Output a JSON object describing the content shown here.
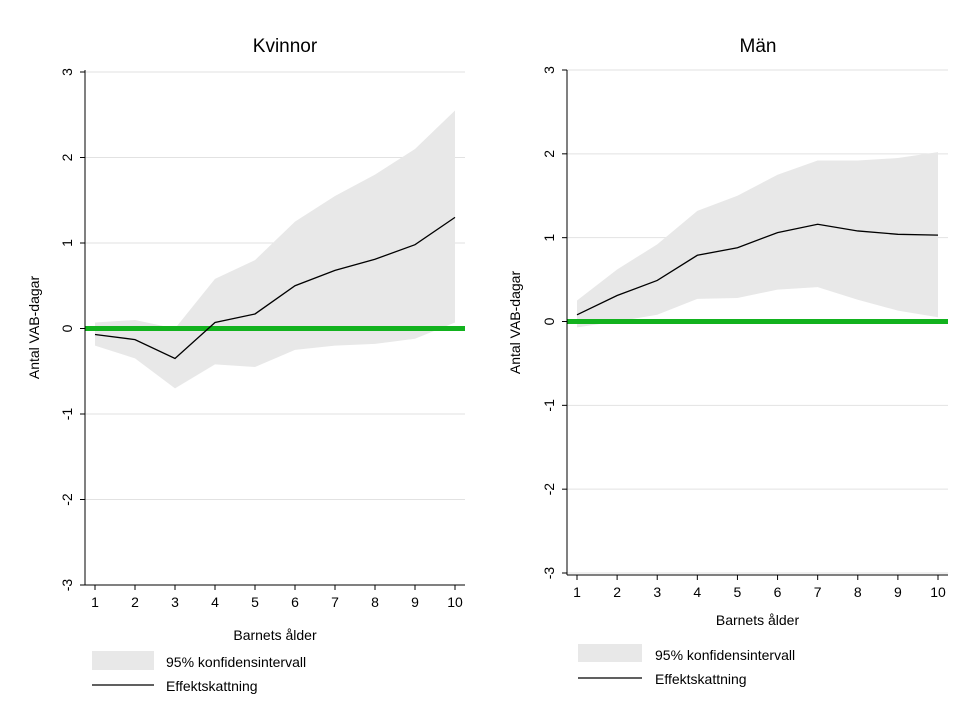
{
  "chart_data": [
    {
      "type": "line",
      "title": "Kvinnor",
      "xlabel": "Barnets ålder",
      "ylabel": "Antal VAB-dagar",
      "x": [
        1,
        2,
        3,
        4,
        5,
        6,
        7,
        8,
        9,
        10
      ],
      "xlim": [
        1,
        10
      ],
      "ylim": [
        -3,
        3
      ],
      "yticks": [
        -3,
        -2,
        -1,
        0,
        1,
        2,
        3
      ],
      "ytick_labels": [
        "-3",
        "-2",
        "-1",
        "0",
        "1",
        "2",
        "3"
      ],
      "xtick_labels": [
        "1",
        "2",
        "3",
        "4",
        "5",
        "6",
        "7",
        "8",
        "9",
        "10"
      ],
      "grid": true,
      "reference_line": {
        "y": 0,
        "color": "#12b21e"
      },
      "series": [
        {
          "name": "Effektskattning",
          "values": [
            -0.07,
            -0.13,
            -0.35,
            0.07,
            0.17,
            0.5,
            0.68,
            0.81,
            0.98,
            1.3
          ],
          "color": "#000000"
        }
      ],
      "band": {
        "name": "95% konfidensintervall",
        "lower": [
          -0.2,
          -0.35,
          -0.7,
          -0.42,
          -0.45,
          -0.25,
          -0.2,
          -0.18,
          -0.12,
          0.07
        ],
        "upper": [
          0.07,
          0.1,
          0.0,
          0.58,
          0.8,
          1.25,
          1.55,
          1.8,
          2.1,
          2.55
        ],
        "color": "#e8e8e8"
      },
      "legend": [
        "95% konfidensintervall",
        "Effektskattning"
      ],
      "legend_position": "bottom"
    },
    {
      "type": "line",
      "title": "Män",
      "xlabel": "Barnets ålder",
      "ylabel": "Antal VAB-dagar",
      "x": [
        1,
        2,
        3,
        4,
        5,
        6,
        7,
        8,
        9,
        10
      ],
      "xlim": [
        1,
        10
      ],
      "ylim": [
        -3,
        3
      ],
      "yticks": [
        -3,
        -2,
        -1,
        0,
        1,
        2,
        3
      ],
      "ytick_labels": [
        "-3",
        "-2",
        "-1",
        "0",
        "1",
        "2",
        "3"
      ],
      "xtick_labels": [
        "1",
        "2",
        "3",
        "4",
        "5",
        "6",
        "7",
        "8",
        "9",
        "10"
      ],
      "grid": true,
      "reference_line": {
        "y": 0,
        "color": "#12b21e"
      },
      "series": [
        {
          "name": "Effektskattning",
          "values": [
            0.08,
            0.31,
            0.49,
            0.79,
            0.88,
            1.06,
            1.16,
            1.08,
            1.04,
            1.03
          ],
          "color": "#000000"
        }
      ],
      "band": {
        "name": "95% konfidensintervall",
        "lower": [
          -0.07,
          0.0,
          0.08,
          0.27,
          0.28,
          0.38,
          0.41,
          0.26,
          0.13,
          0.05
        ],
        "upper": [
          0.25,
          0.62,
          0.92,
          1.32,
          1.5,
          1.75,
          1.92,
          1.92,
          1.95,
          2.02
        ],
        "color": "#e8e8e8"
      },
      "legend": [
        "95% konfidensintervall",
        "Effektskattning"
      ],
      "legend_position": "bottom"
    }
  ]
}
